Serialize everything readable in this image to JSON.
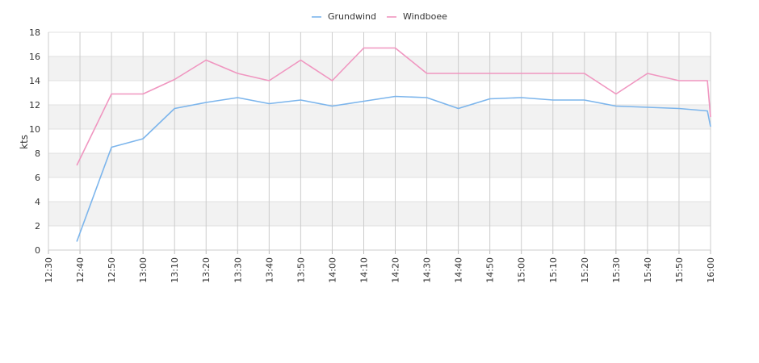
{
  "chart_data": {
    "type": "line",
    "title": "",
    "xlabel": "",
    "ylabel": "kts",
    "ylim": [
      0,
      18
    ],
    "yticks": [
      0,
      2,
      4,
      6,
      8,
      10,
      12,
      14,
      16,
      18
    ],
    "x": [
      "12:30",
      "12:40",
      "12:50",
      "13:00",
      "13:10",
      "13:20",
      "13:30",
      "13:40",
      "13:50",
      "14:00",
      "14:10",
      "14:20",
      "14:30",
      "14:40",
      "14:50",
      "15:00",
      "15:10",
      "15:20",
      "15:30",
      "15:40",
      "15:50",
      "16:00"
    ],
    "xtick_labels": [
      "12:30",
      "12:40",
      "12:50",
      "13:00",
      "13:10",
      "13:20",
      "13:30",
      "13:40",
      "13:50",
      "14:00",
      "14:10",
      "14:20",
      "14:30",
      "14:40",
      "14:50",
      "15:00",
      "15:10",
      "15:20",
      "15:30",
      "15:40",
      "15:50",
      "16:00"
    ],
    "series": [
      {
        "name": "Grundwind",
        "color": "#7cb5ec",
        "points": [
          [
            "12:39",
            0.7
          ],
          [
            "12:50",
            8.5
          ],
          [
            "13:00",
            9.2
          ],
          [
            "13:10",
            11.7
          ],
          [
            "13:20",
            12.2
          ],
          [
            "13:30",
            12.6
          ],
          [
            "13:40",
            12.1
          ],
          [
            "13:50",
            12.4
          ],
          [
            "14:00",
            11.9
          ],
          [
            "14:10",
            12.3
          ],
          [
            "14:20",
            12.7
          ],
          [
            "14:30",
            12.6
          ],
          [
            "14:40",
            11.7
          ],
          [
            "14:50",
            12.5
          ],
          [
            "15:00",
            12.6
          ],
          [
            "15:10",
            12.4
          ],
          [
            "15:20",
            12.4
          ],
          [
            "15:30",
            11.9
          ],
          [
            "15:40",
            11.8
          ],
          [
            "15:50",
            11.7
          ],
          [
            "15:59",
            11.5
          ],
          [
            "16:00",
            10.2
          ]
        ]
      },
      {
        "name": "Windboee",
        "color": "#f096c0",
        "points": [
          [
            "12:39",
            7.0
          ],
          [
            "12:50",
            12.9
          ],
          [
            "13:00",
            12.9
          ],
          [
            "13:10",
            14.1
          ],
          [
            "13:20",
            15.7
          ],
          [
            "13:30",
            14.6
          ],
          [
            "13:40",
            14.0
          ],
          [
            "13:50",
            15.7
          ],
          [
            "14:00",
            14.0
          ],
          [
            "14:10",
            16.7
          ],
          [
            "14:20",
            16.7
          ],
          [
            "14:30",
            14.6
          ],
          [
            "14:40",
            14.6
          ],
          [
            "14:50",
            14.6
          ],
          [
            "15:00",
            14.6
          ],
          [
            "15:10",
            14.6
          ],
          [
            "15:20",
            14.6
          ],
          [
            "15:30",
            12.9
          ],
          [
            "15:40",
            14.6
          ],
          [
            "15:50",
            14.0
          ],
          [
            "15:59",
            14.0
          ],
          [
            "16:00",
            11.0
          ]
        ]
      }
    ],
    "grid": true,
    "legend": "top-center"
  }
}
